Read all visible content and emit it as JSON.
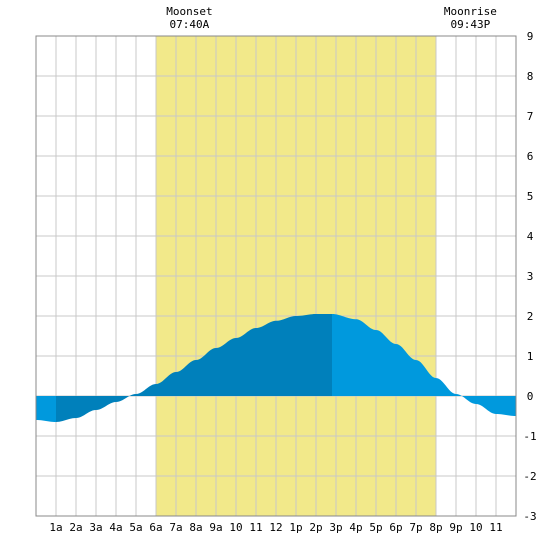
{
  "chart_data": {
    "type": "area",
    "title": "",
    "xlabel": "",
    "ylabel": "",
    "x_range": [
      0,
      24
    ],
    "ylim": [
      -3,
      9
    ],
    "y_ticks": [
      -3,
      -2,
      -1,
      0,
      1,
      2,
      3,
      4,
      5,
      6,
      7,
      8,
      9
    ],
    "x_tick_labels": [
      "1a",
      "2a",
      "3a",
      "4a",
      "5a",
      "6a",
      "7a",
      "8a",
      "9a",
      "10",
      "11",
      "12",
      "1p",
      "2p",
      "3p",
      "4p",
      "5p",
      "6p",
      "7p",
      "8p",
      "9p",
      "10",
      "11"
    ],
    "grid": true,
    "daylight": {
      "start": 6,
      "end": 20
    },
    "moon_events": [
      {
        "label": "Moonset",
        "time": "07:40A",
        "hour": 7.67
      },
      {
        "label": "Moonrise",
        "time": "09:43P",
        "hour": 21.72
      }
    ],
    "tide_curve": {
      "x": [
        0,
        1,
        2,
        3,
        4,
        5,
        6,
        7,
        8,
        9,
        10,
        11,
        12,
        13,
        14,
        14.8,
        16,
        17,
        18,
        19,
        20,
        21,
        22,
        23,
        24
      ],
      "y": [
        -0.6,
        -0.65,
        -0.55,
        -0.35,
        -0.15,
        0.05,
        0.3,
        0.6,
        0.9,
        1.2,
        1.45,
        1.7,
        1.88,
        2.0,
        2.05,
        2.05,
        1.92,
        1.65,
        1.3,
        0.9,
        0.45,
        0.05,
        -0.2,
        -0.45,
        -0.5
      ]
    },
    "segments": [
      {
        "name": "",
        "from": 0,
        "to": 1,
        "shade": "light"
      },
      {
        "name": "",
        "from": 1,
        "to": 14.8,
        "shade": "dark"
      },
      {
        "name": "",
        "from": 14.8,
        "to": 24,
        "shade": "light"
      }
    ],
    "colors": {
      "daylight": "#f2e98a",
      "tide_light": "#0099dd",
      "tide_dark": "#0080bb",
      "grid": "#c8c8c8",
      "frame": "#888888",
      "background": "#ffffff"
    }
  }
}
